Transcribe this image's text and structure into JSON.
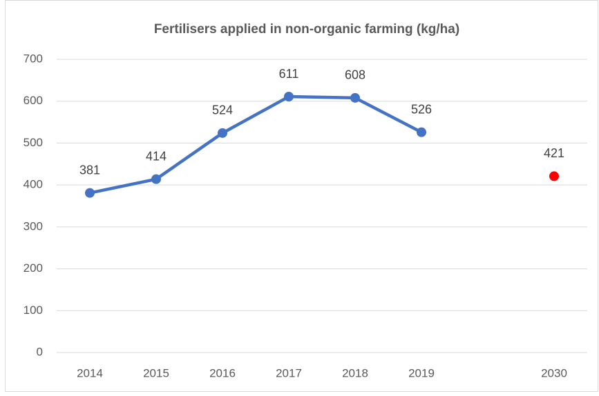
{
  "chart_data": {
    "type": "line",
    "title": "Fertilisers applied in non-organic farming (kg/ha)",
    "categories": [
      "2014",
      "2015",
      "2016",
      "2017",
      "2018",
      "2019",
      null,
      "2030"
    ],
    "series": [
      {
        "color": "#4472c4",
        "show_line": true,
        "values": [
          381,
          414,
          524,
          611,
          608,
          526,
          null,
          null
        ]
      },
      {
        "color": "#ff0000",
        "show_line": false,
        "values": [
          null,
          null,
          null,
          null,
          null,
          null,
          null,
          421
        ]
      }
    ],
    "ylim": [
      0,
      700
    ],
    "yticks": [
      0,
      100,
      200,
      300,
      400,
      500,
      600,
      700
    ],
    "grid": true
  }
}
